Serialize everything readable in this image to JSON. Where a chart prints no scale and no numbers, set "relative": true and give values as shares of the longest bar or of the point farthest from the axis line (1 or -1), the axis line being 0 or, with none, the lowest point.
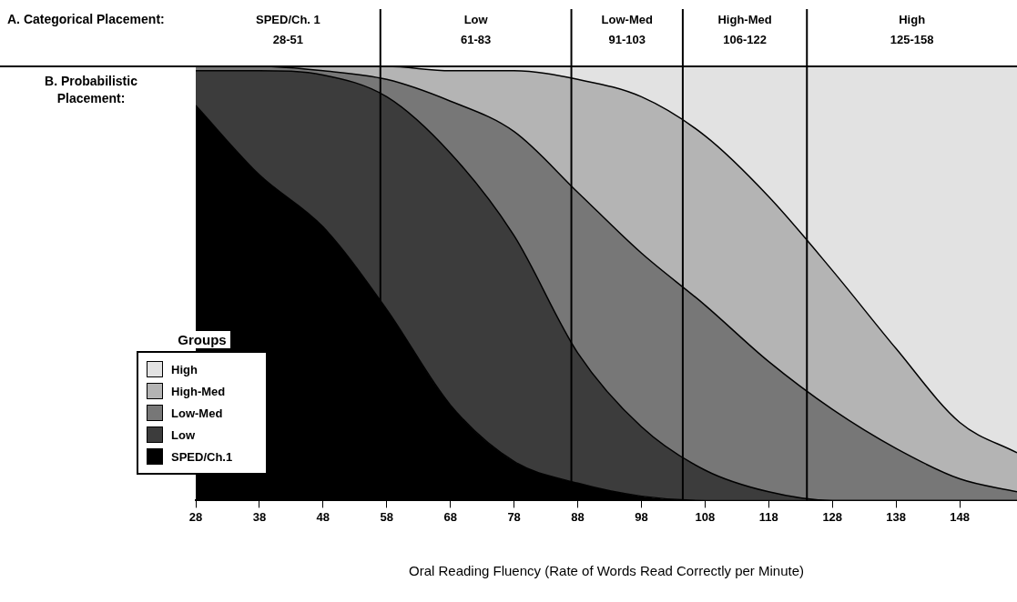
{
  "chart_data": {
    "type": "area",
    "relative": true,
    "stacked": true,
    "annotations": [
      "A. Categorical Placement:",
      "B. Probabilistic\nPlacement:",
      "SPED/Ch. 1\n28-51",
      "Low\n61-83",
      "Low-Med\n91-103",
      "High-Med\n106-122",
      "High\n125-158"
    ],
    "xlabel": "Oral Reading Fluency (Rate of Words Read Correctly per Minute)",
    "x": [
      28,
      38,
      48,
      58,
      68,
      78,
      88,
      98,
      108,
      118,
      128,
      138,
      148,
      157
    ],
    "xlim": [
      28,
      157
    ],
    "xticks": [
      28,
      38,
      48,
      58,
      68,
      78,
      88,
      98,
      108,
      118,
      128,
      138,
      148
    ],
    "legend": "bottom left",
    "legend_title": "Groups",
    "ref_lines": [
      {
        "axis": "x",
        "value": 57,
        "color": "#000000"
      },
      {
        "axis": "x",
        "value": 87,
        "color": "#000000"
      },
      {
        "axis": "x",
        "value": 104.5,
        "color": "#000000"
      },
      {
        "axis": "x",
        "value": 124,
        "color": "#000000"
      }
    ],
    "series": [
      {
        "name": "SPED/Ch.1",
        "color": "#000000",
        "values": [
          0.91,
          0.75,
          0.63,
          0.44,
          0.22,
          0.09,
          0.04,
          0.01,
          0,
          0,
          0,
          0,
          0,
          0
        ]
      },
      {
        "name": "Low",
        "color": "#3c3c3c",
        "values": [
          0.08,
          0.24,
          0.35,
          0.49,
          0.58,
          0.52,
          0.3,
          0.16,
          0.07,
          0.02,
          0,
          0,
          0,
          0
        ]
      },
      {
        "name": "Low-Med",
        "color": "#777777",
        "values": [
          0.01,
          0.01,
          0.01,
          0.04,
          0.12,
          0.24,
          0.37,
          0.4,
          0.38,
          0.3,
          0.21,
          0.12,
          0.05,
          0.02
        ]
      },
      {
        "name": "High-Med",
        "color": "#b4b4b4",
        "values": [
          0,
          0,
          0.01,
          0.03,
          0.07,
          0.14,
          0.26,
          0.36,
          0.39,
          0.38,
          0.32,
          0.23,
          0.13,
          0.09
        ]
      },
      {
        "name": "High",
        "color": "#e2e2e2",
        "values": [
          0,
          0,
          0,
          0,
          0.01,
          0.01,
          0.03,
          0.07,
          0.16,
          0.3,
          0.47,
          0.65,
          0.82,
          0.89
        ]
      }
    ]
  }
}
